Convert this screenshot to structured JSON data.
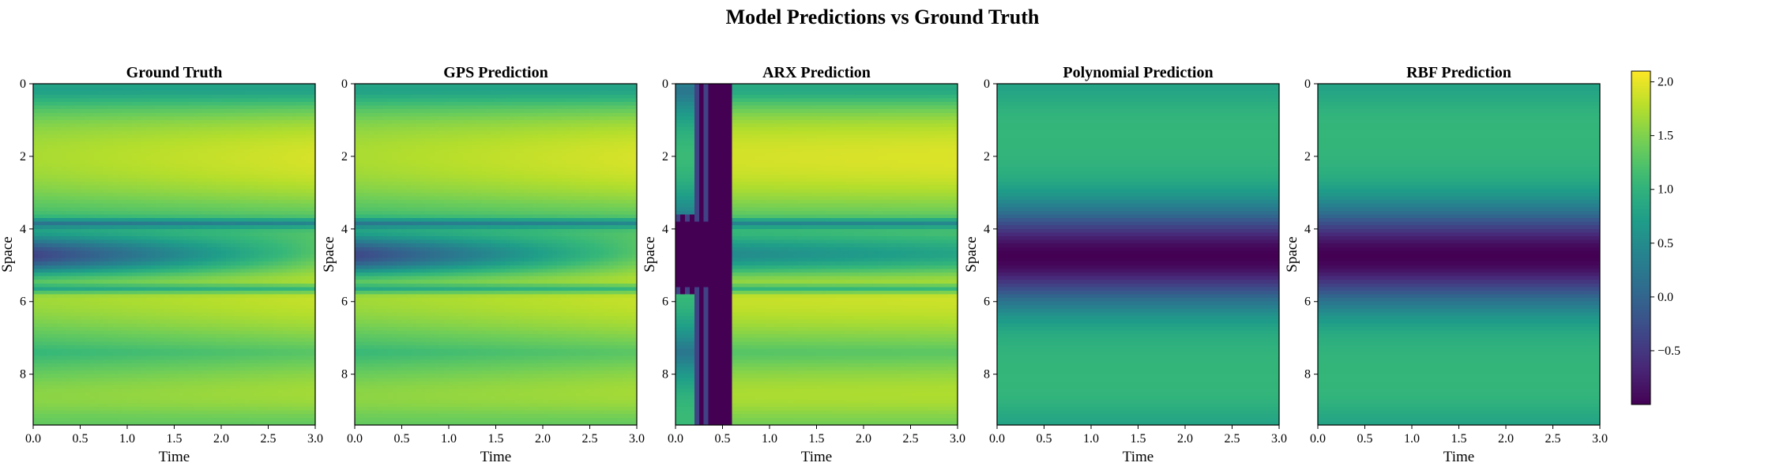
{
  "chart_data": {
    "type": "heatmap",
    "title": "Model Predictions vs Ground Truth",
    "colormap": "viridis",
    "colorbar": {
      "range": [
        -1.0,
        2.1
      ],
      "ticks": [
        2.0,
        1.5,
        1.0,
        0.5,
        0.0,
        -0.5
      ],
      "tick_labels": [
        "2.0",
        "1.5",
        "1.0",
        "0.5",
        "0.0",
        "−0.5"
      ]
    },
    "panels": [
      {
        "title": "Ground Truth",
        "xlabel": "Time",
        "ylabel": "Space",
        "model": "truth",
        "x_range": [
          0.0,
          3.0
        ],
        "y_range": [
          0.0,
          9.4
        ],
        "y_inverted": true,
        "x_ticks": [
          "0.0",
          "0.5",
          "1.0",
          "1.5",
          "2.0",
          "2.5",
          "3.0"
        ],
        "y_ticks": [
          "0",
          "2",
          "4",
          "6",
          "8"
        ]
      },
      {
        "title": "GPS Prediction",
        "xlabel": "Time",
        "ylabel": "Space",
        "model": "gps",
        "x_range": [
          0.0,
          3.0
        ],
        "y_range": [
          0.0,
          9.4
        ],
        "y_inverted": true,
        "x_ticks": [
          "0.0",
          "0.5",
          "1.0",
          "1.5",
          "2.0",
          "2.5",
          "3.0"
        ],
        "y_ticks": [
          "0",
          "2",
          "4",
          "6",
          "8"
        ]
      },
      {
        "title": "ARX Prediction",
        "xlabel": "Time",
        "ylabel": "Space",
        "model": "arx",
        "x_range": [
          0.0,
          3.0
        ],
        "y_range": [
          0.0,
          9.4
        ],
        "y_inverted": true,
        "x_ticks": [
          "0.0",
          "0.5",
          "1.0",
          "1.5",
          "2.0",
          "2.5",
          "3.0"
        ],
        "y_ticks": [
          "0",
          "2",
          "4",
          "6",
          "8"
        ]
      },
      {
        "title": "Polynomial Prediction",
        "xlabel": "Time",
        "ylabel": "Space",
        "model": "static",
        "x_range": [
          0.0,
          3.0
        ],
        "y_range": [
          0.0,
          9.4
        ],
        "y_inverted": true,
        "x_ticks": [
          "0.0",
          "0.5",
          "1.0",
          "1.5",
          "2.0",
          "2.5",
          "3.0"
        ],
        "y_ticks": [
          "0",
          "2",
          "4",
          "6",
          "8"
        ]
      },
      {
        "title": "RBF Prediction",
        "xlabel": "Time",
        "ylabel": "Space",
        "model": "static",
        "x_range": [
          0.0,
          3.0
        ],
        "y_range": [
          0.0,
          9.4
        ],
        "y_inverted": true,
        "x_ticks": [
          "0.0",
          "0.5",
          "1.0",
          "1.5",
          "2.0",
          "2.5",
          "3.0"
        ],
        "y_ticks": [
          "0",
          "2",
          "4",
          "6",
          "8"
        ]
      }
    ]
  }
}
